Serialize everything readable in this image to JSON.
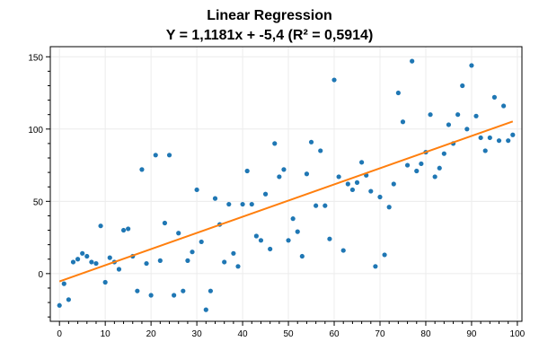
{
  "chart_data": {
    "type": "scatter",
    "title": "Linear Regression",
    "subtitle": "Y = 1,1181x + -5,4 (R² = 0,5914)",
    "xlabel": "",
    "ylabel": "",
    "xlim": [
      -2,
      101
    ],
    "ylim": [
      -33,
      157
    ],
    "x_ticks": [
      0,
      10,
      20,
      30,
      40,
      50,
      60,
      70,
      80,
      90,
      100
    ],
    "y_ticks": [
      0,
      50,
      100,
      150
    ],
    "x_tick_labels": [
      "0",
      "10",
      "20",
      "30",
      "40",
      "50",
      "60",
      "70",
      "80",
      "90",
      "100"
    ],
    "y_tick_labels": [
      "0",
      "50",
      "100",
      "150"
    ],
    "grid": true,
    "legend": "none",
    "series": [
      {
        "type": "scatter",
        "color": "#1f77b4",
        "x": [
          0,
          1,
          2,
          3,
          4,
          5,
          6,
          7,
          8,
          9,
          10,
          11,
          12,
          13,
          14,
          15,
          16,
          17,
          18,
          19,
          20,
          21,
          22,
          23,
          24,
          25,
          26,
          27,
          28,
          29,
          30,
          31,
          32,
          33,
          34,
          35,
          36,
          37,
          38,
          39,
          40,
          41,
          42,
          43,
          44,
          45,
          46,
          47,
          48,
          49,
          50,
          51,
          52,
          53,
          54,
          55,
          56,
          57,
          58,
          59,
          60,
          61,
          62,
          63,
          64,
          65,
          66,
          67,
          68,
          69,
          70,
          71,
          72,
          73,
          74,
          75,
          76,
          77,
          78,
          79,
          80,
          81,
          82,
          83,
          84,
          85,
          86,
          87,
          88,
          89,
          90,
          91,
          92,
          93,
          94,
          95,
          96,
          97,
          98,
          99
        ],
        "y": [
          -22,
          -7,
          -18,
          8,
          10,
          14,
          12,
          8,
          7,
          33,
          -6,
          11,
          8,
          3,
          30,
          31,
          12,
          -12,
          72,
          7,
          -15,
          82,
          9,
          35,
          82,
          -15,
          28,
          -12,
          9,
          15,
          58,
          22,
          -25,
          -12,
          52,
          34,
          8,
          48,
          14,
          5,
          48,
          71,
          48,
          26,
          23,
          55,
          17,
          90,
          67,
          72,
          23,
          38,
          29,
          12,
          69,
          91,
          47,
          85,
          47,
          24,
          134,
          67,
          16,
          62,
          58,
          63,
          77,
          68,
          57,
          5,
          53,
          13,
          46,
          62,
          125,
          105,
          75,
          147,
          71,
          76,
          84,
          110,
          67,
          73,
          83,
          103,
          90,
          110,
          130,
          100,
          144,
          109,
          94,
          85,
          94,
          122,
          92,
          116,
          92,
          96
        ]
      },
      {
        "type": "line",
        "color": "#ff7f0e",
        "x": [
          0,
          99
        ],
        "y": [
          -5.4,
          105.29
        ]
      }
    ]
  }
}
